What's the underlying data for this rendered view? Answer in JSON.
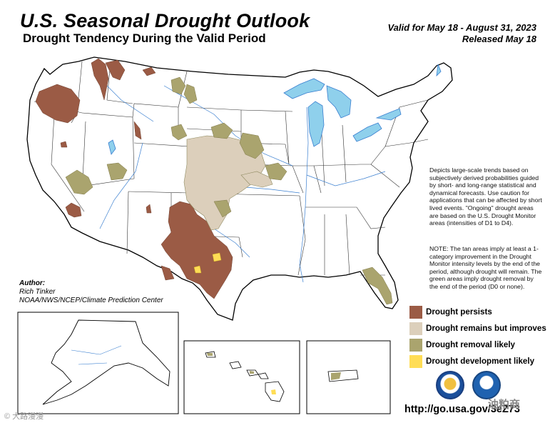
{
  "header": {
    "title": "U.S. Seasonal Drought Outlook",
    "subtitle": "Drought Tendency During the Valid Period",
    "valid_line": "Valid for May 18 - August 31, 2023",
    "released_line": "Released May 18"
  },
  "description": {
    "main": "Depicts large-scale trends based on subjectively derived probabilities guided by short- and long-range statistical and dynamical forecasts. Use caution for applications that can be affected by short lived events. \"Ongoing\" drought areas are based on the U.S. Drought Monitor areas (intensities of D1 to D4).",
    "note": "NOTE: The tan areas imply at least a 1-category improvement in the Drought Monitor intensity levels by the end of the period, although drought will remain. The green areas imply drought removal by the end of the period (D0 or none)."
  },
  "legend": {
    "items": [
      {
        "label": "Drought persists",
        "color": "#9b5b45"
      },
      {
        "label": "Drought remains but improves",
        "color": "#dccfbb"
      },
      {
        "label": "Drought removal likely",
        "color": "#aaa46e"
      },
      {
        "label": "Drought development likely",
        "color": "#ffdd55"
      }
    ]
  },
  "author": {
    "heading": "Author:",
    "name": "Rich Tinker",
    "org": "NOAA/NWS/NCEP/Climate Prediction Center"
  },
  "footer": {
    "url": "http://go.usa.gov/3eZ73",
    "watermark_left": "© 大路漫漫",
    "watermark_right": "油粕商"
  },
  "colors": {
    "persist": "#9b5b45",
    "improve": "#dccfbb",
    "removal": "#aaa46e",
    "development": "#ffdd55",
    "water": "#8fd0ec",
    "river": "#3a7fd0"
  }
}
